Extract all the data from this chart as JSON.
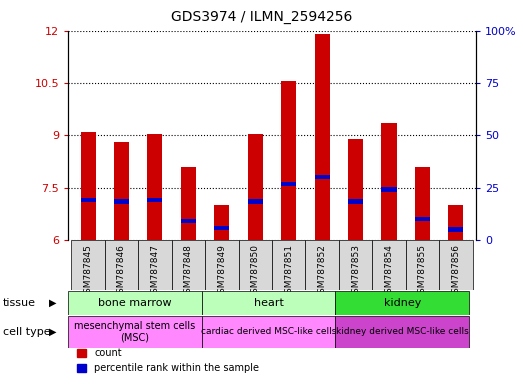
{
  "title": "GDS3974 / ILMN_2594256",
  "samples": [
    "GSM787845",
    "GSM787846",
    "GSM787847",
    "GSM787848",
    "GSM787849",
    "GSM787850",
    "GSM787851",
    "GSM787852",
    "GSM787853",
    "GSM787854",
    "GSM787855",
    "GSM787856"
  ],
  "red_values": [
    9.1,
    8.8,
    9.05,
    8.1,
    7.0,
    9.05,
    10.55,
    11.9,
    8.9,
    9.35,
    8.1,
    7.0
  ],
  "blue_values": [
    7.15,
    7.1,
    7.15,
    6.55,
    6.35,
    7.1,
    7.6,
    7.8,
    7.1,
    7.45,
    6.6,
    6.3
  ],
  "ymin": 6,
  "ymax": 12,
  "yticks_left": [
    6,
    7.5,
    9,
    10.5,
    12
  ],
  "yticks_right": [
    0,
    25,
    50,
    75,
    100
  ],
  "ylabel_left_color": "#cc0000",
  "ylabel_right_color": "#0000cc",
  "bar_color": "#cc0000",
  "marker_color": "#0000cc",
  "tissue_colors": [
    "#bbffbb",
    "#bbffbb",
    "#33dd33"
  ],
  "celltype_colors": [
    "#ff88ff",
    "#ff88ff",
    "#cc44cc"
  ],
  "bg_color": "#d8d8d8",
  "bar_width": 0.45,
  "spans_tissue": [
    [
      0,
      4,
      "bone marrow"
    ],
    [
      4,
      8,
      "heart"
    ],
    [
      8,
      12,
      "kidney"
    ]
  ],
  "spans_cell": [
    [
      0,
      4,
      "mesenchymal stem cells\n(MSC)"
    ],
    [
      4,
      8,
      "cardiac derived MSC-like cells"
    ],
    [
      8,
      12,
      "kidney derived MSC-like cells"
    ]
  ]
}
